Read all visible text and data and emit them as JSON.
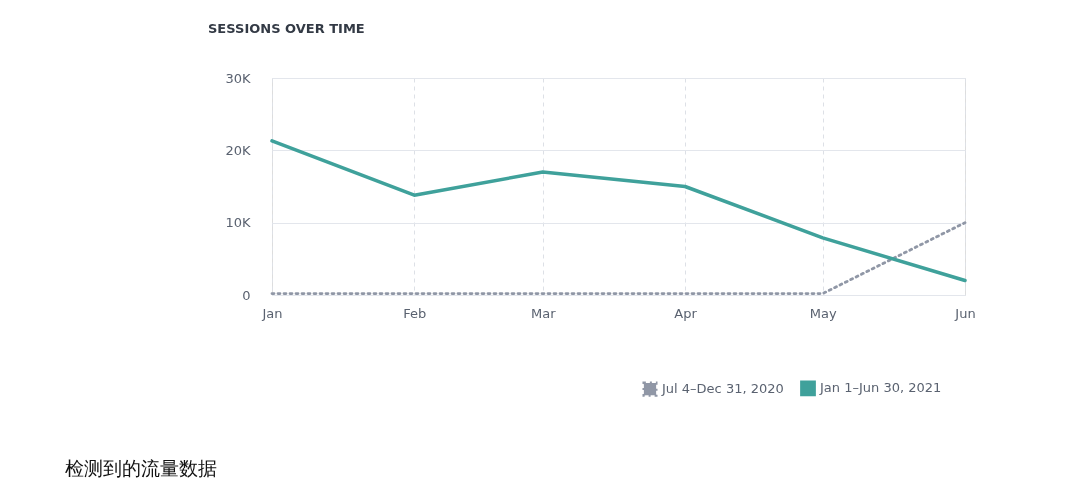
{
  "chart_data": {
    "type": "line",
    "title": "SESSIONS OVER TIME",
    "x": [
      "2021-01-01",
      "2021-02-01",
      "2021-03-01",
      "2021-04-01",
      "2021-05-01",
      "2021-06-01"
    ],
    "xlim": [
      "2021-01-01",
      "2021-06-01"
    ],
    "xticks": [
      {
        "value": "2021-01-01",
        "label": "Jan"
      },
      {
        "value": "2021-02-01",
        "label": "Feb"
      },
      {
        "value": "2021-03-01",
        "label": "Mar"
      },
      {
        "value": "2021-04-01",
        "label": "Apr"
      },
      {
        "value": "2021-05-01",
        "label": "May"
      },
      {
        "value": "2021-06-01",
        "label": "Jun"
      }
    ],
    "ylim": [
      0,
      30000
    ],
    "yticks": [
      0,
      {
        "value": 10000,
        "label": "10K"
      },
      {
        "value": 20000,
        "label": "20K"
      },
      {
        "value": 30000,
        "label": "30K"
      }
    ],
    "series": [
      {
        "name": "Jul 4–Dec 31, 2020",
        "color": "#9097a6",
        "line_style": "dotted",
        "values": [
          200,
          200,
          200,
          200,
          200,
          10000
        ]
      },
      {
        "name": "Jan 1–Jun 30, 2021",
        "color": "#3fa19b",
        "line_style": "solid",
        "values": [
          21300,
          13800,
          17000,
          15000,
          7900,
          2000
        ]
      }
    ],
    "grid": true,
    "legend": "bottom right",
    "marker": "none",
    "annotations": [
      "检测到的流量数据"
    ]
  }
}
